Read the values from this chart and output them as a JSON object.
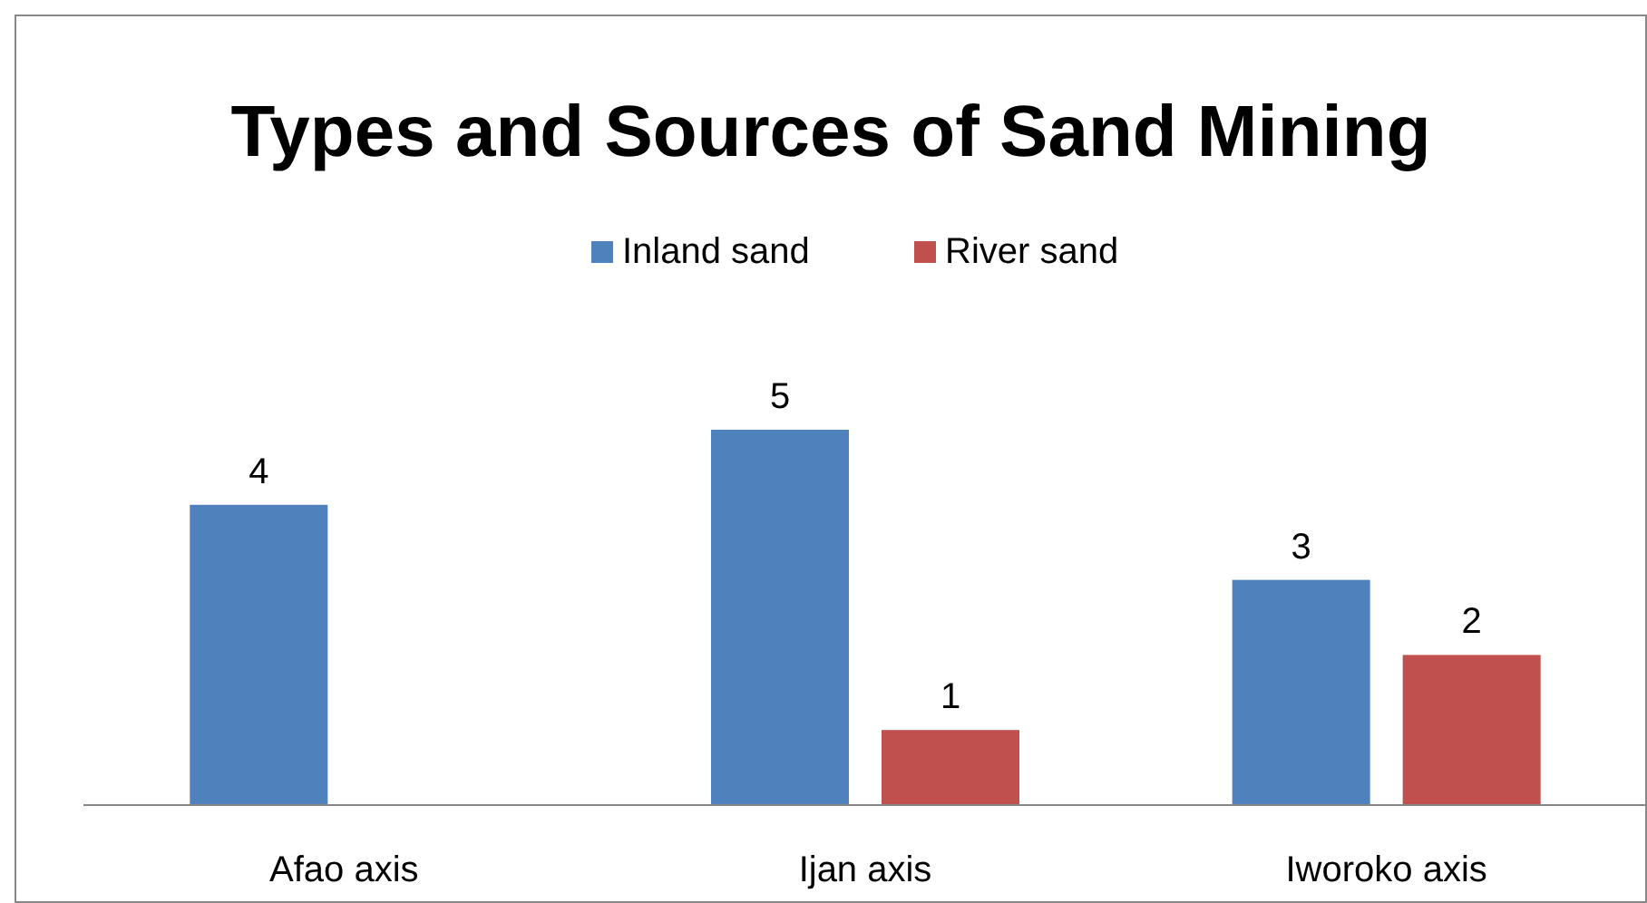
{
  "chart_data": {
    "type": "bar",
    "title": "Types and Sources of Sand Mining",
    "categories": [
      "Afao axis",
      "Ijan axis",
      "Iworoko axis"
    ],
    "series": [
      {
        "name": "Inland sand",
        "color": "#4f81bd",
        "values": [
          4,
          5,
          3
        ]
      },
      {
        "name": "River sand",
        "color": "#c0504d",
        "values": [
          null,
          1,
          2
        ]
      }
    ],
    "data_labels": true,
    "legend": "top"
  }
}
